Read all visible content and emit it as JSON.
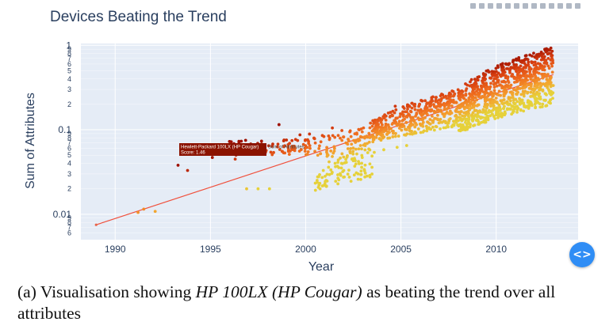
{
  "chart_data": {
    "type": "scatter",
    "title": "Devices Beating the Trend",
    "xlabel": "Year",
    "ylabel": "Sum of Attributes",
    "xlim": [
      1988.2,
      2014.3
    ],
    "ylim": [
      0.005,
      1.05
    ],
    "yscale": "log",
    "x_ticks": [
      1990,
      1995,
      2000,
      2005,
      2010
    ],
    "y_major_ticks": [
      {
        "v": 1,
        "label": "1"
      },
      {
        "v": 0.1,
        "label": "0.1"
      },
      {
        "v": 0.01,
        "label": "0.01"
      }
    ],
    "y_minor_ticks": [
      {
        "v": 0.9,
        "label": "9"
      },
      {
        "v": 0.8,
        "label": "8"
      },
      {
        "v": 0.7,
        "label": "7"
      },
      {
        "v": 0.6,
        "label": "6"
      },
      {
        "v": 0.5,
        "label": "5"
      },
      {
        "v": 0.4,
        "label": "4"
      },
      {
        "v": 0.3,
        "label": "3"
      },
      {
        "v": 0.2,
        "label": "2"
      },
      {
        "v": 0.09,
        "label": "9"
      },
      {
        "v": 0.08,
        "label": "8"
      },
      {
        "v": 0.07,
        "label": "7"
      },
      {
        "v": 0.06,
        "label": "6"
      },
      {
        "v": 0.05,
        "label": "5"
      },
      {
        "v": 0.04,
        "label": "4"
      },
      {
        "v": 0.03,
        "label": "3"
      },
      {
        "v": 0.02,
        "label": "2"
      },
      {
        "v": 0.009,
        "label": "9"
      },
      {
        "v": 0.008,
        "label": "8"
      },
      {
        "v": 0.007,
        "label": "7"
      },
      {
        "v": 0.006,
        "label": "6"
      }
    ],
    "trend_line": {
      "x": [
        1989,
        2013
      ],
      "y": [
        0.0075,
        0.45
      ],
      "color": "#f0503c"
    },
    "highlight_point": {
      "x": 1993.5,
      "y": 0.062,
      "name": "Hewlett-Packard 100LX (HP Cougar)",
      "score": 1.46
    },
    "hover": {
      "name": "Hewlett-Packard 100LX (HP Cougar)",
      "score_label": "Score: 1.46",
      "trace": "Sum of Attributes"
    },
    "outliers": [
      {
        "x": 1991.2,
        "y": 0.0105
      },
      {
        "x": 1991.5,
        "y": 0.0115
      },
      {
        "x": 1992.1,
        "y": 0.0108
      },
      {
        "x": 1993.3,
        "y": 0.038
      },
      {
        "x": 1993.8,
        "y": 0.033
      },
      {
        "x": 1995.1,
        "y": 0.047
      },
      {
        "x": 1996.3,
        "y": 0.045
      },
      {
        "x": 1997.4,
        "y": 0.066
      },
      {
        "x": 1998.6,
        "y": 0.115
      },
      {
        "x": 1999.1,
        "y": 0.058
      },
      {
        "x": 1999.7,
        "y": 0.087
      },
      {
        "x": 2000.2,
        "y": 0.089
      },
      {
        "x": 1996.9,
        "y": 0.02
      },
      {
        "x": 1997.5,
        "y": 0.02
      },
      {
        "x": 1998.1,
        "y": 0.02
      },
      {
        "x": 2001.2,
        "y": 0.036
      },
      {
        "x": 2002.5,
        "y": 0.043
      },
      {
        "x": 2003.6,
        "y": 0.054
      },
      {
        "x": 2004.1,
        "y": 0.058
      },
      {
        "x": 2004.8,
        "y": 0.062
      },
      {
        "x": 2005.3,
        "y": 0.065
      },
      {
        "x": 2001.4,
        "y": 0.105
      },
      {
        "x": 2001.9,
        "y": 0.098
      },
      {
        "x": 2003.4,
        "y": 0.12
      },
      {
        "x": 2004.7,
        "y": 0.19
      },
      {
        "x": 2005.9,
        "y": 0.17
      },
      {
        "x": 2007.4,
        "y": 0.235
      }
    ],
    "dense_regions": [
      {
        "x0": 1996.0,
        "x1": 2000.5,
        "lo0": 0.05,
        "hi0": 0.075,
        "lo1": 0.05,
        "hi1": 0.08,
        "count": 90
      },
      {
        "x0": 2000.5,
        "x1": 2003.5,
        "lo0": 0.019,
        "hi0": 0.09,
        "lo1": 0.027,
        "hi1": 0.11,
        "count": 180
      },
      {
        "x0": 2003.5,
        "x1": 2008.0,
        "lo0": 0.07,
        "hi0": 0.13,
        "lo1": 0.11,
        "hi1": 0.3,
        "count": 420
      },
      {
        "x0": 2008.0,
        "x1": 2013.0,
        "lo0": 0.09,
        "hi0": 0.3,
        "lo1": 0.2,
        "hi1": 0.97,
        "count": 900
      }
    ],
    "colorscale": [
      "#e6d13a",
      "#f4a02e",
      "#ee6a1e",
      "#d63d10",
      "#9e1000"
    ],
    "grid": true,
    "legend": "none"
  },
  "ui": {
    "nav_button_label": "<>"
  },
  "caption": {
    "prefix": "(a) Visualisation showing ",
    "device": "HP 100LX (HP Cougar)",
    "suffix": " as beating the trend over all attributes"
  }
}
